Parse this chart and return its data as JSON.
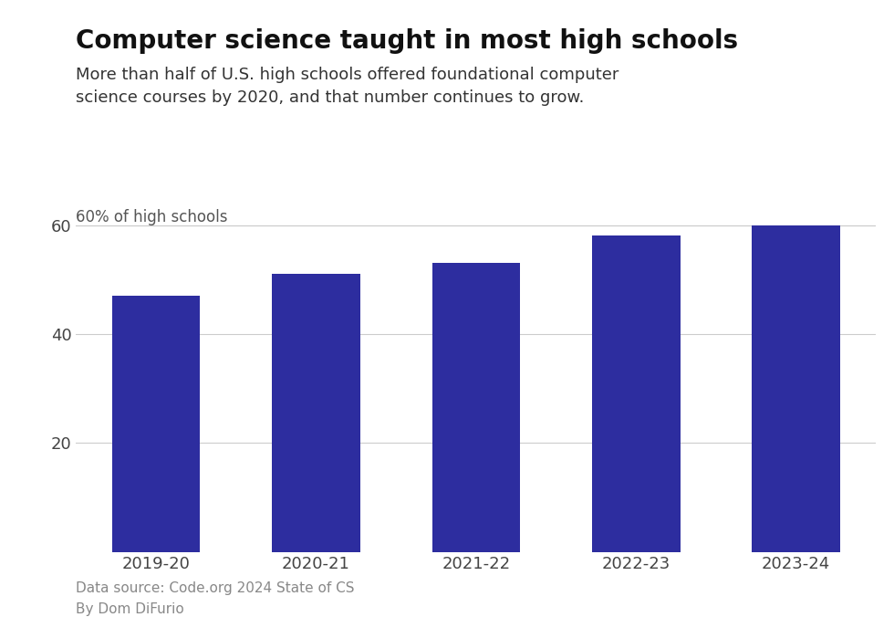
{
  "categories": [
    "2019-20",
    "2020-21",
    "2021-22",
    "2022-23",
    "2023-24"
  ],
  "values": [
    47,
    51,
    53,
    58,
    60
  ],
  "bar_color": "#2d2d9f",
  "title": "Computer science taught in most high schools",
  "subtitle": "More than half of U.S. high schools offered foundational computer\nscience courses by 2020, and that number continues to grow.",
  "axis_label": "60% of high schools",
  "ylim": [
    0,
    65
  ],
  "yticks": [
    20,
    40,
    60
  ],
  "footnote": "Data source: Code.org 2024 State of CS\nBy Dom DiFurio",
  "background_color": "#ffffff",
  "title_fontsize": 20,
  "subtitle_fontsize": 13,
  "tick_fontsize": 13,
  "footnote_fontsize": 11,
  "axis_label_fontsize": 12,
  "bar_width": 0.55
}
